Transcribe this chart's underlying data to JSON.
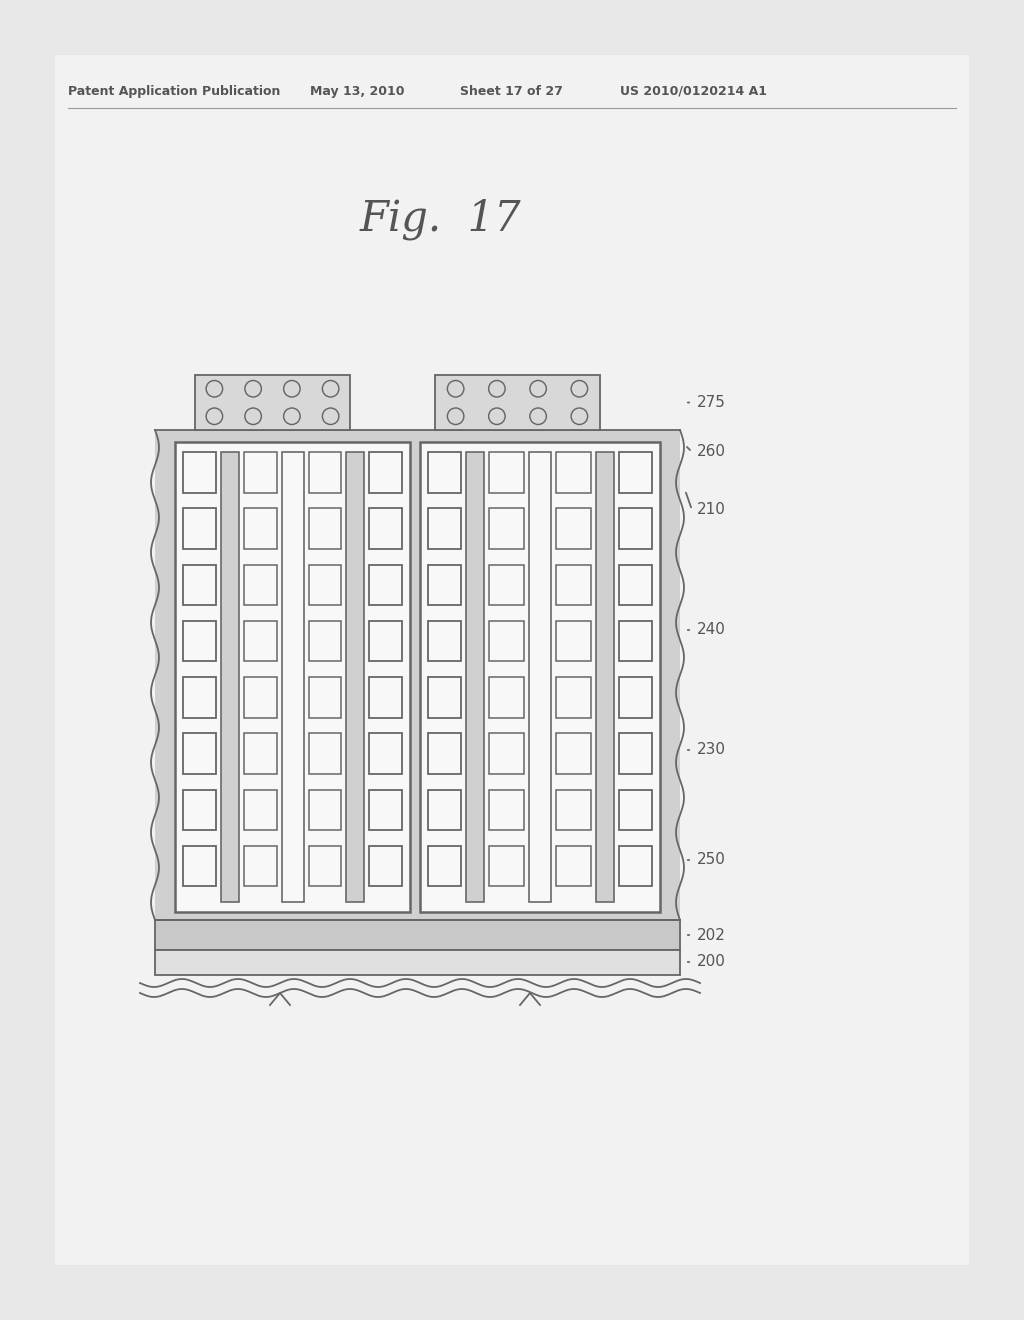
{
  "bg_color": "#e8e8e8",
  "panel_color": "#ebebeb",
  "fig_label": "Fig.  17",
  "header_text": "Patent Application Publication",
  "header_date": "May 13, 2010",
  "header_sheet": "Sheet 17 of 27",
  "header_patent": "US 2010/0120214 A1",
  "line_color": "#666666",
  "fill_body": "#d0d0d0",
  "fill_white": "#f8f8f8",
  "fill_oxide": "#c8c8c8",
  "fill_pad": "#d8d8d8",
  "label_color": "#555555",
  "label_fontsize": 11,
  "fig_label_fontsize": 30,
  "header_fontsize": 9
}
